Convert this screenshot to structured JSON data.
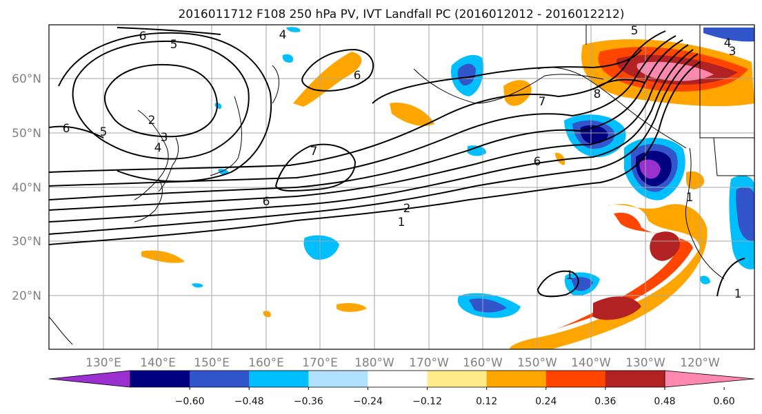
{
  "title": "2016011712 F108 250 hPa PV, IVT Landfall PC (2016012012 - 2016012212)",
  "lon_ticks": [
    "130°E",
    "140°E",
    "150°E",
    "160°E",
    "170°E",
    "180°W",
    "170°W",
    "160°W",
    "150°W",
    "140°W",
    "130°W",
    "120°W"
  ],
  "lat_ticks": [
    "60°N",
    "50°N",
    "40°N",
    "30°N",
    "20°N"
  ],
  "colorbar": {
    "ticks": [
      "−0.60",
      "−0.48",
      "−0.36",
      "−0.24",
      "−0.12",
      "0.12",
      "0.24",
      "0.36",
      "0.48",
      "0.60"
    ],
    "colors": [
      "#9b30d0",
      "#000080",
      "#3355cc",
      "#00bfff",
      "#b0e2ff",
      "#ffffff",
      "#ffec8b",
      "#ffa500",
      "#ff4500",
      "#b22222",
      "#ff88b0"
    ]
  },
  "contour_labels": [
    "6",
    "5",
    "4",
    "2",
    "3",
    "4",
    "6",
    "5",
    "6",
    "7",
    "6",
    "2",
    "1",
    "7",
    "6",
    "8",
    "5",
    "4",
    "3",
    "1",
    "1",
    "1"
  ]
}
